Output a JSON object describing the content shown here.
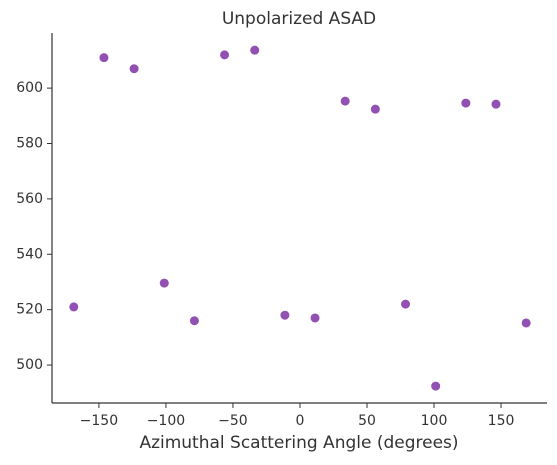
{
  "chart_data": {
    "type": "scatter",
    "title": "Unpolarized ASAD",
    "x_label": "Azimuthal Scattering Angle (degrees)",
    "x": [
      -168.75,
      -146.25,
      -123.75,
      -101.25,
      -78.75,
      -56.25,
      -33.75,
      -11.25,
      11.25,
      33.75,
      56.25,
      78.75,
      101.25,
      123.75,
      146.25,
      168.75
    ],
    "values": [
      521,
      611,
      607,
      529.6,
      516,
      612,
      613.7,
      518,
      517,
      595.3,
      592.4,
      522,
      492.4,
      594.6,
      594.2,
      515.2
    ],
    "color": "#9150b2",
    "xlim": [
      -185,
      184.3
    ],
    "ylim": [
      486.3,
      619.9
    ],
    "xticks": [
      {
        "value": -150,
        "label": "−150"
      },
      {
        "value": -100,
        "label": "−100"
      },
      {
        "value": -50,
        "label": "−50"
      },
      0,
      50,
      100,
      150
    ],
    "yticks": [
      500,
      520,
      540,
      560,
      580,
      600
    ]
  }
}
